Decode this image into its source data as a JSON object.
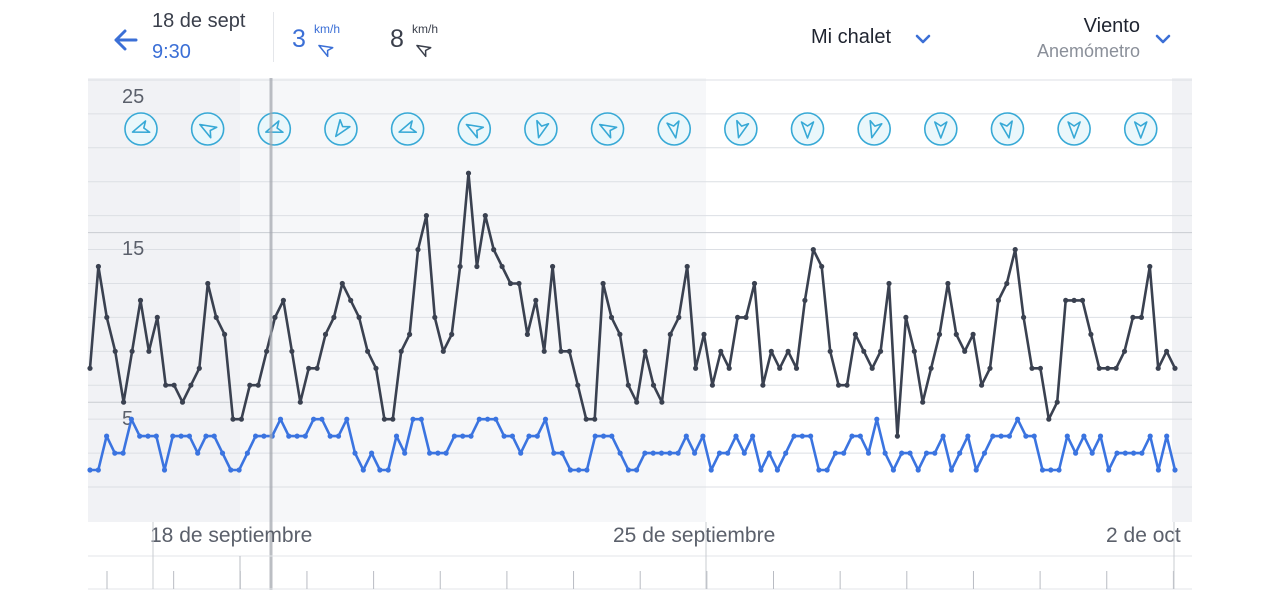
{
  "header": {
    "date": "18 de sept",
    "time": "9:30",
    "reading_1": {
      "value": "3",
      "unit": "km/h",
      "color": "#3b6fd6"
    },
    "reading_2": {
      "value": "8",
      "unit": "km/h",
      "color": "#3a3f4b"
    },
    "station_name": "Mi chalet",
    "sensor_title": "Viento",
    "sensor_subtitle": "Anemómetro",
    "icons": {
      "back": "arrow-left-icon",
      "direction": "wind-direction-arrow-icon",
      "dropdown": "chevron-down-icon"
    }
  },
  "chart_data": {
    "type": "line",
    "y_ticks": [
      5,
      15,
      25
    ],
    "ylim": [
      0,
      25
    ],
    "x_labels": [
      "18 de septiembre",
      "25 de septiembre",
      "2 de oct"
    ],
    "cursor_time": "18 de sept 9:30",
    "grid": true,
    "series": [
      {
        "color": "#3a4150",
        "values": [
          7,
          13,
          10,
          8,
          5,
          8,
          11,
          8,
          10,
          6,
          6,
          5,
          6,
          7,
          12,
          10,
          9,
          4,
          4,
          6,
          6,
          8,
          10,
          11,
          8,
          5,
          7,
          7,
          9,
          10,
          12,
          11,
          10,
          8,
          7,
          4,
          4,
          8,
          9,
          14,
          16,
          10,
          8,
          9,
          13,
          18.5,
          13,
          16,
          14,
          13,
          12,
          12,
          9,
          11,
          8,
          13,
          8,
          8,
          6,
          4,
          4,
          12,
          10,
          9,
          6,
          5,
          8,
          6,
          5,
          9,
          10,
          13,
          7,
          9,
          6,
          8,
          7,
          10,
          10,
          12,
          6,
          8,
          7,
          8,
          7,
          11,
          14,
          13,
          8,
          6,
          6,
          9,
          8,
          7,
          8,
          12,
          3,
          10,
          8,
          5,
          7,
          9,
          12,
          9,
          8,
          9,
          6,
          7,
          11,
          12,
          14,
          10,
          7,
          7,
          4,
          5,
          11,
          11,
          11,
          9,
          7,
          7,
          7,
          8,
          10,
          10,
          13,
          7,
          8,
          7
        ]
      },
      {
        "color": "#3b74e0",
        "values": [
          1,
          1,
          3,
          2,
          2,
          4,
          3,
          3,
          3,
          1,
          3,
          3,
          3,
          2,
          3,
          3,
          2,
          1,
          1,
          2,
          3,
          3,
          3,
          4,
          3,
          3,
          3,
          4,
          4,
          3,
          3,
          4,
          2,
          1,
          2,
          1,
          1,
          3,
          2,
          4,
          4,
          2,
          2,
          2,
          3,
          3,
          3,
          4,
          4,
          4,
          3,
          3,
          2,
          3,
          3,
          4,
          2,
          2,
          1,
          1,
          1,
          3,
          3,
          3,
          2,
          1,
          1,
          2,
          2,
          2,
          2,
          2,
          3,
          2,
          3,
          1,
          2,
          2,
          3,
          2,
          3,
          1,
          2,
          1,
          2,
          3,
          3,
          3,
          1,
          1,
          2,
          2,
          3,
          3,
          2,
          4,
          2,
          1,
          2,
          2,
          1,
          2,
          2,
          3,
          1,
          2,
          3,
          1,
          2,
          3,
          3,
          3,
          4,
          3,
          3,
          1,
          1,
          1,
          3,
          2,
          3,
          2,
          3,
          1,
          2,
          2,
          2,
          2,
          3,
          1,
          3,
          1
        ]
      }
    ],
    "direction_arrows": [
      {
        "bearing": 250
      },
      {
        "bearing": 300
      },
      {
        "bearing": 250
      },
      {
        "bearing": 215
      },
      {
        "bearing": 250
      },
      {
        "bearing": 300
      },
      {
        "bearing": 195
      },
      {
        "bearing": 300
      },
      {
        "bearing": 170
      },
      {
        "bearing": 195
      },
      {
        "bearing": 180
      },
      {
        "bearing": 195
      },
      {
        "bearing": 180
      },
      {
        "bearing": 170
      },
      {
        "bearing": 180
      },
      {
        "bearing": 180
      }
    ]
  }
}
